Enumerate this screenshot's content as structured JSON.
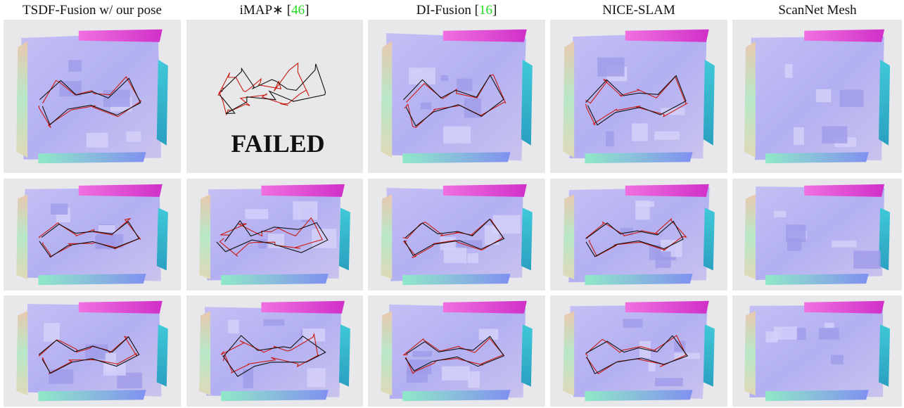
{
  "columns": [
    {
      "label": "TSDF-Fusion w/ our pose"
    },
    {
      "prefix": "iMAP∗ [",
      "cite": "46",
      "suffix": "]"
    },
    {
      "prefix": "DI-Fusion [",
      "cite": "16",
      "suffix": "]"
    },
    {
      "label": "NICE-SLAM"
    },
    {
      "label": "ScanNet Mesh"
    }
  ],
  "failed": "FAILED"
}
